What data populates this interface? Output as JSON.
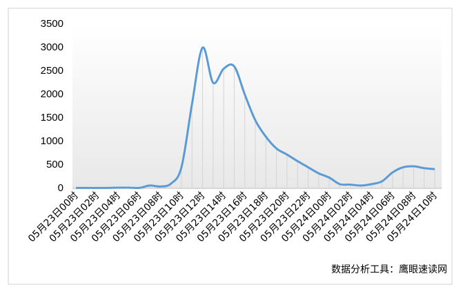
{
  "chart_data": {
    "type": "line",
    "categories": [
      "05月23日00时",
      null,
      "05月23日02时",
      null,
      "05月23日04时",
      null,
      "05月23日06时",
      null,
      "05月23日08时",
      null,
      "05月23日10时",
      null,
      "05月23日12时",
      null,
      "05月23日14时",
      null,
      "05月23日16时",
      null,
      "05月23日18时",
      null,
      "05月23日20时",
      null,
      "05月23日22时",
      null,
      "05月24日00时",
      null,
      "05月24日02时",
      null,
      "05月24日04时",
      null,
      "05月24日06时",
      null,
      "05月24日08时",
      null,
      "05月24日10时"
    ],
    "values": [
      10,
      10,
      10,
      10,
      15,
      15,
      10,
      60,
      40,
      100,
      450,
      1800,
      3000,
      2250,
      2550,
      2600,
      2000,
      1450,
      1100,
      850,
      720,
      580,
      450,
      320,
      230,
      90,
      80,
      60,
      90,
      150,
      340,
      450,
      470,
      430,
      410
    ],
    "color": "#5b9bd5",
    "ylim": [
      0,
      3500
    ],
    "yticks": [
      0,
      500,
      1000,
      1500,
      2000,
      2500,
      3000,
      3500
    ],
    "drop_lines": true,
    "annotation": "数据分析工具：鹰眼速读网"
  }
}
